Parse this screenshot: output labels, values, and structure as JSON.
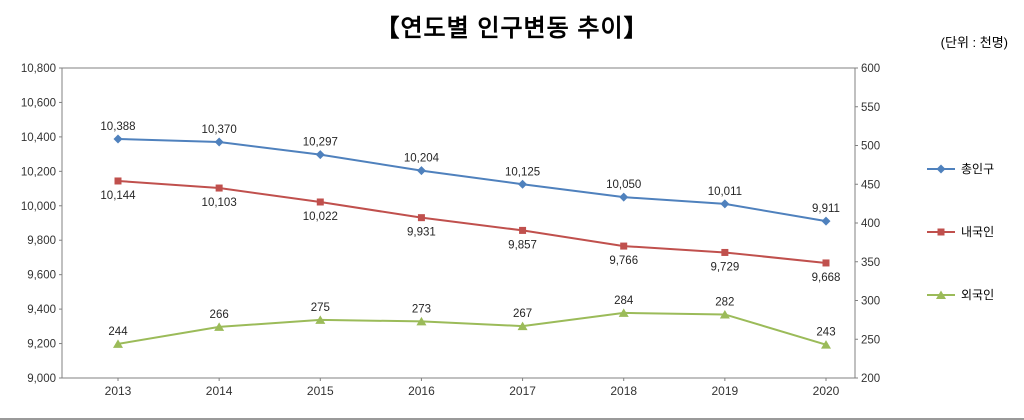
{
  "title": "【연도별 인구변동 추이】",
  "unit_label": "(단위 : 천명)",
  "chart_data": {
    "type": "line",
    "categories": [
      "2013",
      "2014",
      "2015",
      "2016",
      "2017",
      "2018",
      "2019",
      "2020"
    ],
    "series": [
      {
        "id": "total-population",
        "name": "총인구",
        "axis": "left",
        "color": "#4F81BD",
        "marker": "diamond",
        "label_position": "above",
        "values": [
          10388,
          10370,
          10297,
          10204,
          10125,
          10050,
          10011,
          9911
        ]
      },
      {
        "id": "nationals",
        "name": "내국인",
        "axis": "left",
        "color": "#C0504D",
        "marker": "square",
        "label_position": "below",
        "values": [
          10144,
          10103,
          10022,
          9931,
          9857,
          9766,
          9729,
          9668
        ]
      },
      {
        "id": "foreigners",
        "name": "외국인",
        "axis": "right",
        "color": "#9BBB59",
        "marker": "triangle",
        "label_position": "above",
        "values": [
          244,
          266,
          275,
          273,
          267,
          284,
          282,
          243
        ]
      }
    ],
    "left_axis": {
      "min": 9000,
      "max": 10800,
      "step": 200,
      "ticks": [
        "10,800",
        "10,600",
        "10,400",
        "10,200",
        "10,000",
        "9,800",
        "9,600",
        "9,400",
        "9,200",
        "9,000"
      ]
    },
    "right_axis": {
      "min": 200,
      "max": 600,
      "step": 50,
      "ticks": [
        "600",
        "550",
        "500",
        "450",
        "400",
        "350",
        "300",
        "250",
        "200"
      ]
    },
    "grid": false,
    "legend_position": "right",
    "legend": [
      "총인구",
      "내국인",
      "외국인"
    ]
  }
}
